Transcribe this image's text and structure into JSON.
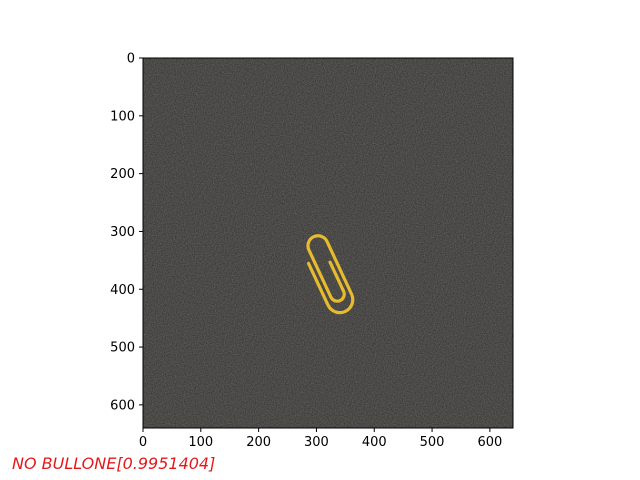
{
  "chart_data": {
    "type": "image",
    "xlim": [
      0,
      640
    ],
    "ylim": [
      640,
      0
    ],
    "x_ticks": [
      0,
      100,
      200,
      300,
      400,
      500,
      600
    ],
    "y_ticks": [
      0,
      100,
      200,
      300,
      400,
      500,
      600
    ],
    "grid": false,
    "image_subject": "yellow paperclip on dark textured surface"
  },
  "caption": {
    "text": "NO BULLONE[0.9951404]",
    "color": "#e31a1c"
  },
  "colors": {
    "background": "#2b2a28",
    "object": "#e8bb2e"
  }
}
